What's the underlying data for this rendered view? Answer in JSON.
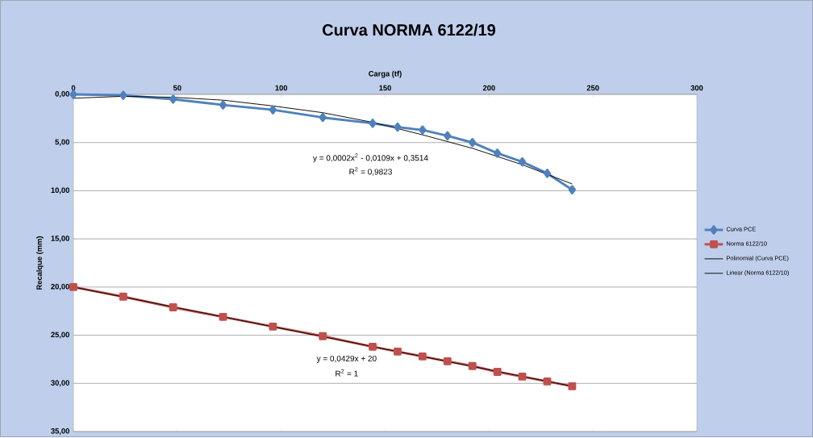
{
  "chart_data": {
    "type": "line",
    "title": "Curva NORMA 6122/19",
    "xlabel": "Carga (tf)",
    "ylabel": "Recalque (mm)",
    "x": [
      0,
      24,
      48,
      72,
      96,
      120,
      144,
      156,
      168,
      180,
      192,
      204,
      216,
      228,
      240
    ],
    "series": [
      {
        "name": "Curva PCE",
        "color": "#4f81bd",
        "marker": "diamond",
        "values": [
          0,
          0.1,
          0.5,
          1.1,
          1.6,
          2.4,
          3.0,
          3.4,
          3.7,
          4.3,
          5.0,
          6.1,
          7.0,
          8.2,
          9.9
        ]
      },
      {
        "name": "Norma 6122/10",
        "color": "#c0504d",
        "marker": "square",
        "values": [
          20,
          21.0,
          22.1,
          23.1,
          24.1,
          25.1,
          26.2,
          26.7,
          27.2,
          27.7,
          28.2,
          28.8,
          29.3,
          29.8,
          30.3
        ]
      },
      {
        "name": "Polinomial (Curva PCE)",
        "color": "#000000",
        "marker": "none",
        "x": [
          0,
          24,
          48,
          72,
          96,
          120,
          144,
          168,
          192,
          216,
          240
        ],
        "values": [
          0.4,
          0.2,
          0.3,
          0.6,
          1.2,
          1.9,
          2.9,
          4.2,
          5.6,
          7.3,
          9.3
        ]
      },
      {
        "name": "Linear (Norma 6122/10)",
        "color": "#000000",
        "marker": "none",
        "x": [
          0,
          240
        ],
        "values": [
          20,
          30.3
        ]
      }
    ],
    "annotations": [
      "y = 0,0002x$^{2}$ - 0,0109x + 0,3514",
      "R$^{2}$ = 0,9823",
      "y = 0,0429x + 20",
      "R$^{2}$ = 1"
    ],
    "xlim": [
      0,
      300
    ],
    "xticks": [
      0,
      50,
      100,
      150,
      200,
      250,
      300
    ],
    "ylim": [
      35,
      0
    ],
    "yticks": [
      {
        "value": 0,
        "label": "0,00"
      },
      {
        "value": 5,
        "label": "5,00"
      },
      {
        "value": 10,
        "label": "10,00"
      },
      {
        "value": 15,
        "label": "15,00"
      },
      {
        "value": 20,
        "label": "20,00"
      },
      {
        "value": 25,
        "label": "25,00"
      },
      {
        "value": 30,
        "label": "30,00"
      },
      {
        "value": 35,
        "label": "35,00"
      }
    ],
    "grid": "y",
    "legend": "right"
  }
}
